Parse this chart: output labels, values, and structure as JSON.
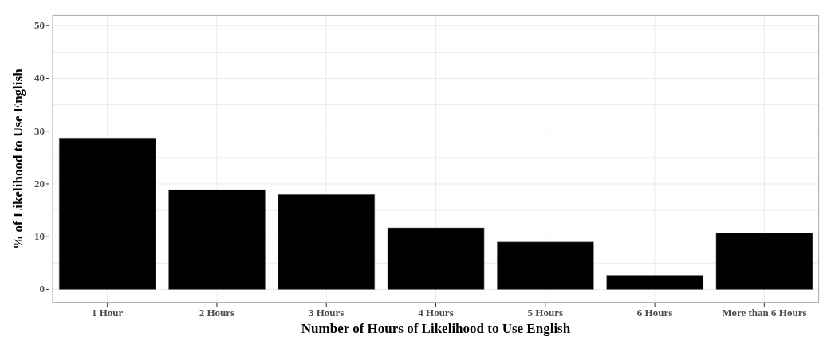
{
  "chart_data": {
    "type": "bar",
    "xlabel": "Number of Hours of Likelihood to Use English",
    "ylabel": "% of Likelihood to Use English",
    "categories": [
      "1 Hour",
      "2 Hours",
      "3 Hours",
      "4 Hours",
      "5 Hours",
      "6 Hours",
      "More than 6 Hours"
    ],
    "values": [
      28.7,
      18.9,
      18.0,
      11.7,
      9.0,
      2.7,
      10.7
    ],
    "color": "#000000",
    "ylim": [
      -2.5,
      52
    ],
    "yticks": [
      0,
      {
        "value": 5,
        "label": null
      },
      10,
      {
        "value": 15,
        "label": null
      },
      20,
      {
        "value": 25,
        "label": null
      },
      30,
      {
        "value": 35,
        "label": null
      },
      40,
      {
        "value": 45,
        "label": null
      },
      50
    ],
    "grid": true
  }
}
